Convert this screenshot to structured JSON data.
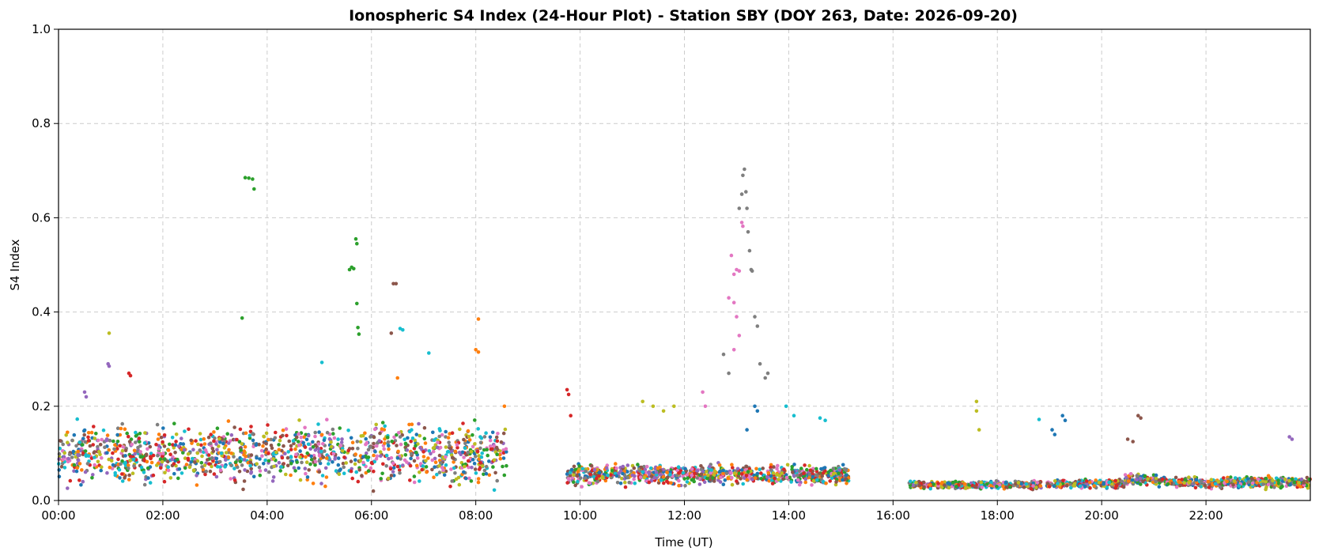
{
  "chart_data": {
    "type": "scatter",
    "title": "Ionospheric S4 Index (24-Hour Plot) - Station SBY (DOY 263, Date: 2026-09-20)",
    "xlabel": "Time (UT)",
    "ylabel": "S4 Index",
    "xlim": [
      0,
      24
    ],
    "ylim": [
      0,
      1.0
    ],
    "x_unit": "hours UT",
    "x_ticks": [
      0,
      2,
      4,
      6,
      8,
      10,
      12,
      14,
      16,
      18,
      20,
      22
    ],
    "x_tick_labels": [
      "00:00",
      "02:00",
      "04:00",
      "06:00",
      "08:00",
      "10:00",
      "12:00",
      "14:00",
      "16:00",
      "18:00",
      "20:00",
      "22:00"
    ],
    "y_ticks": [
      0.0,
      0.2,
      0.4,
      0.6,
      0.8,
      1.0
    ],
    "y_tick_labels": [
      "0.0",
      "0.2",
      "0.4",
      "0.6",
      "0.8",
      "1.0"
    ],
    "grid": true,
    "legend": "none",
    "colors": [
      "#1f77b4",
      "#ff7f0e",
      "#2ca02c",
      "#d62728",
      "#9467bd",
      "#8c564b",
      "#e377c2",
      "#7f7f7f",
      "#bcbd22",
      "#17becf"
    ],
    "observation_windows": [
      {
        "start": 0.0,
        "end": 8.6,
        "level": 0.11,
        "spread": 0.06
      },
      {
        "start": 9.75,
        "end": 15.15,
        "level": 0.055,
        "spread": 0.018
      },
      {
        "start": 16.3,
        "end": 18.85,
        "level": 0.033,
        "spread": 0.007
      },
      {
        "start": 18.95,
        "end": 20.45,
        "level": 0.035,
        "spread": 0.008
      },
      {
        "start": 20.45,
        "end": 21.05,
        "level": 0.045,
        "spread": 0.01
      },
      {
        "start": 21.1,
        "end": 24.0,
        "level": 0.038,
        "spread": 0.01
      }
    ],
    "series": [
      {
        "color": "#2ca02c",
        "points": [
          [
            3.58,
            0.685
          ],
          [
            3.65,
            0.684
          ],
          [
            3.72,
            0.682
          ],
          [
            3.75,
            0.661
          ],
          [
            3.52,
            0.387
          ],
          [
            5.58,
            0.49
          ],
          [
            5.62,
            0.495
          ],
          [
            5.66,
            0.492
          ],
          [
            5.7,
            0.555
          ],
          [
            5.72,
            0.545
          ],
          [
            5.72,
            0.418
          ],
          [
            5.74,
            0.367
          ],
          [
            5.76,
            0.353
          ]
        ]
      },
      {
        "color": "#7f7f7f",
        "points": [
          [
            13.05,
            0.62
          ],
          [
            13.1,
            0.65
          ],
          [
            13.12,
            0.69
          ],
          [
            13.15,
            0.703
          ],
          [
            13.18,
            0.655
          ],
          [
            13.2,
            0.62
          ],
          [
            13.22,
            0.57
          ],
          [
            13.25,
            0.53
          ],
          [
            13.28,
            0.49
          ],
          [
            13.3,
            0.487
          ],
          [
            13.35,
            0.39
          ],
          [
            13.4,
            0.37
          ],
          [
            12.75,
            0.31
          ],
          [
            12.85,
            0.27
          ],
          [
            13.55,
            0.26
          ],
          [
            13.6,
            0.27
          ],
          [
            13.45,
            0.29
          ]
        ]
      },
      {
        "color": "#e377c2",
        "points": [
          [
            12.95,
            0.48
          ],
          [
            13.0,
            0.49
          ],
          [
            13.05,
            0.487
          ],
          [
            13.1,
            0.59
          ],
          [
            13.12,
            0.582
          ],
          [
            12.9,
            0.52
          ],
          [
            12.95,
            0.42
          ],
          [
            13.0,
            0.39
          ],
          [
            13.05,
            0.35
          ],
          [
            12.85,
            0.43
          ],
          [
            12.95,
            0.32
          ],
          [
            12.35,
            0.23
          ],
          [
            12.4,
            0.2
          ]
        ]
      },
      {
        "color": "#9467bd",
        "points": [
          [
            0.95,
            0.29
          ],
          [
            0.97,
            0.285
          ],
          [
            0.5,
            0.23
          ],
          [
            0.53,
            0.22
          ],
          [
            23.6,
            0.135
          ],
          [
            23.65,
            0.13
          ]
        ]
      },
      {
        "color": "#bcbd22",
        "points": [
          [
            0.97,
            0.355
          ],
          [
            17.6,
            0.21
          ],
          [
            17.6,
            0.19
          ],
          [
            17.65,
            0.15
          ],
          [
            11.2,
            0.21
          ],
          [
            11.4,
            0.2
          ],
          [
            11.6,
            0.19
          ],
          [
            11.8,
            0.2
          ]
        ]
      },
      {
        "color": "#d62728",
        "points": [
          [
            1.35,
            0.27
          ],
          [
            1.38,
            0.265
          ],
          [
            9.75,
            0.235
          ],
          [
            9.78,
            0.225
          ],
          [
            9.82,
            0.18
          ]
        ]
      },
      {
        "color": "#8c564b",
        "points": [
          [
            6.42,
            0.46
          ],
          [
            6.47,
            0.46
          ],
          [
            6.38,
            0.355
          ],
          [
            20.7,
            0.18
          ],
          [
            20.75,
            0.175
          ],
          [
            20.5,
            0.13
          ],
          [
            20.6,
            0.125
          ]
        ]
      },
      {
        "color": "#ff7f0e",
        "points": [
          [
            8.05,
            0.385
          ],
          [
            8.0,
            0.32
          ],
          [
            8.05,
            0.315
          ],
          [
            6.5,
            0.26
          ],
          [
            8.55,
            0.2
          ]
        ]
      },
      {
        "color": "#17becf",
        "points": [
          [
            6.55,
            0.365
          ],
          [
            6.6,
            0.362
          ],
          [
            7.1,
            0.313
          ],
          [
            5.05,
            0.293
          ],
          [
            13.95,
            0.2
          ],
          [
            14.1,
            0.18
          ],
          [
            14.6,
            0.175
          ],
          [
            14.7,
            0.17
          ],
          [
            18.8,
            0.172
          ]
        ]
      },
      {
        "color": "#1f77b4",
        "points": [
          [
            19.25,
            0.18
          ],
          [
            19.3,
            0.17
          ],
          [
            19.05,
            0.15
          ],
          [
            19.1,
            0.14
          ],
          [
            13.35,
            0.2
          ],
          [
            13.4,
            0.19
          ],
          [
            13.2,
            0.15
          ]
        ]
      }
    ]
  }
}
